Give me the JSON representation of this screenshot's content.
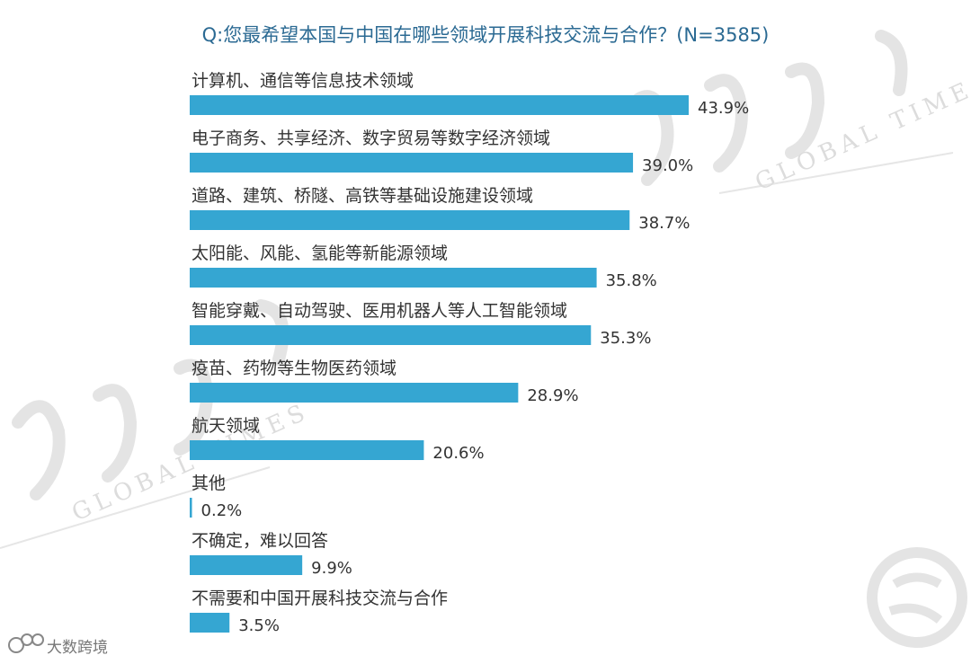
{
  "title": "Q:您最希望本国与中国在哪些领域开展科技交流与合作？(N=3585)",
  "source_label": "大数跨境",
  "watermark_text": "GLOBAL TIMES",
  "colors": {
    "bar": "#35a6d2",
    "title": "#2b6a93",
    "text": "#333333"
  },
  "chart_data": {
    "type": "bar",
    "orientation": "horizontal",
    "title": "Q:您最希望本国与中国在哪些领域开展科技交流与合作？(N=3585)",
    "categories": [
      "计算机、通信等信息技术领域",
      "电子商务、共享经济、数字贸易等数字经济领域",
      "道路、建筑、桥隧、高铁等基础设施建设领域",
      "太阳能、风能、氢能等新能源领域",
      "智能穿戴、自动驾驶、医用机器人等人工智能领域",
      "疫苗、药物等生物医药领域",
      "航天领域",
      "其他",
      "不确定，难以回答",
      "不需要和中国开展科技交流与合作"
    ],
    "values": [
      43.9,
      39.0,
      38.7,
      35.8,
      35.3,
      28.9,
      20.6,
      0.2,
      9.9,
      3.5
    ],
    "value_labels": [
      "43.9%",
      "39.0%",
      "38.7%",
      "35.8%",
      "35.3%",
      "28.9%",
      "20.6%",
      "0.2%",
      "9.9%",
      "3.5%"
    ],
    "xlim": [
      0,
      43.9
    ],
    "grid": false,
    "legend": "none"
  }
}
